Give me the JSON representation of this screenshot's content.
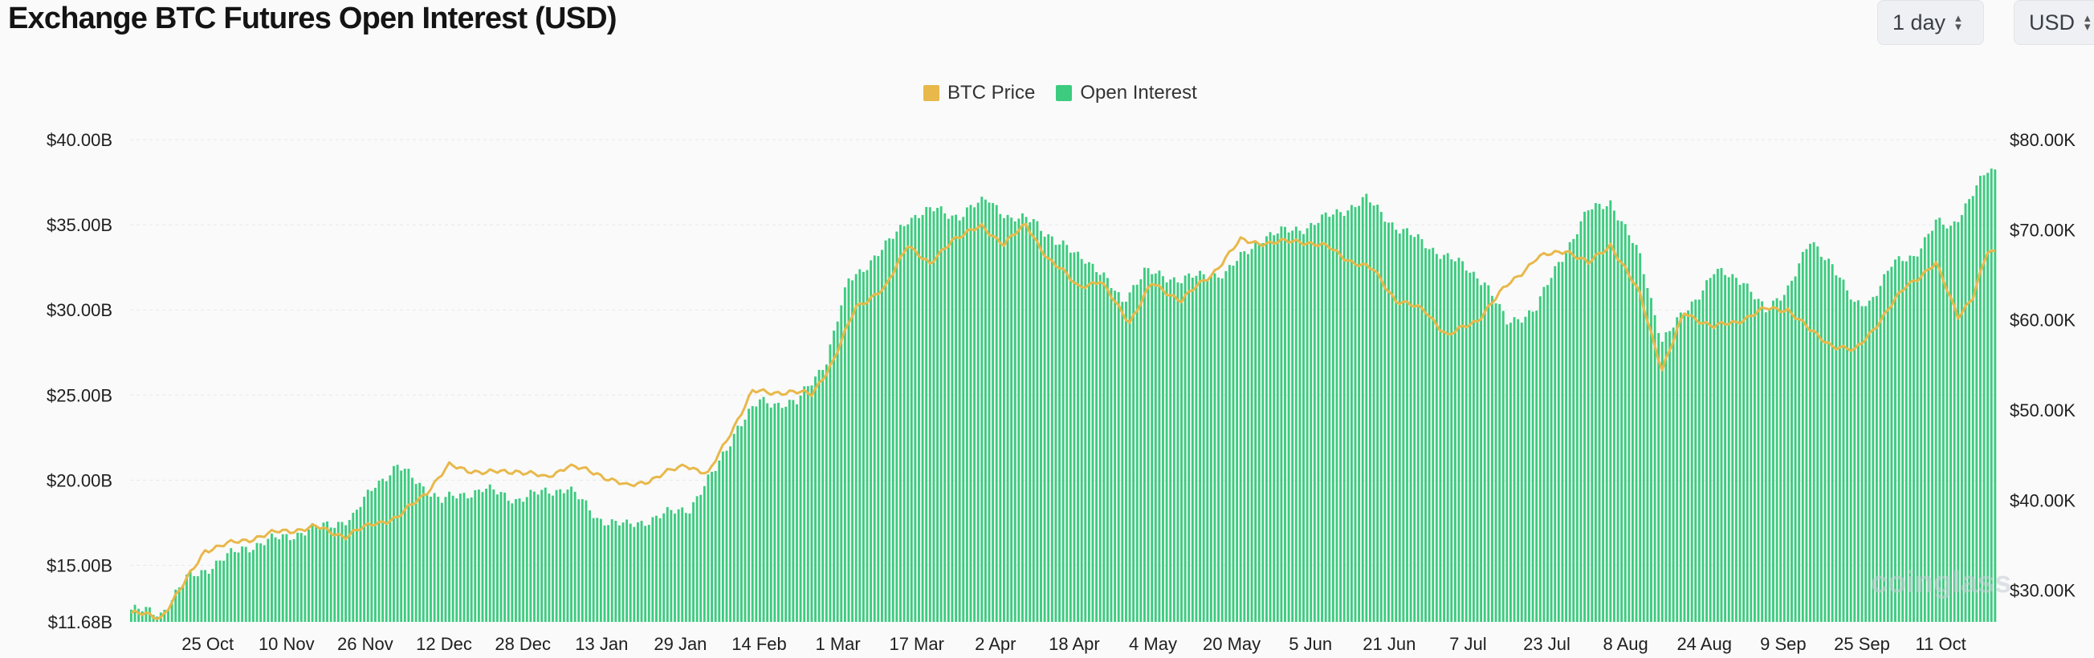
{
  "header": {
    "title": "Exchange BTC Futures Open Interest (USD)"
  },
  "controls": {
    "interval": {
      "value": "1 day"
    },
    "currency": {
      "value": "USD"
    }
  },
  "watermark": "coinglass",
  "colors": {
    "btc_price": "#e8b84a",
    "open_interest": "#3ccb7f",
    "grid": "#e6e8eb"
  },
  "chart_data": {
    "type": "bar",
    "title": "Exchange BTC Futures Open Interest (USD)",
    "legend": [
      "BTC Price",
      "Open Interest"
    ],
    "legend_position": "top-center",
    "grid": true,
    "x_tick_labels": [
      "25 Oct",
      "10 Nov",
      "26 Nov",
      "12 Dec",
      "28 Dec",
      "13 Jan",
      "29 Jan",
      "14 Feb",
      "1 Mar",
      "17 Mar",
      "2 Apr",
      "18 Apr",
      "4 May",
      "20 May",
      "5 Jun",
      "21 Jun",
      "7 Jul",
      "23 Jul",
      "8 Aug",
      "24 Aug",
      "9 Sep",
      "25 Sep",
      "11 Oct"
    ],
    "y_left": {
      "ticks": [
        "$11.68B",
        "$15.00B",
        "$20.00B",
        "$25.00B",
        "$30.00B",
        "$35.00B",
        "$40.00B"
      ],
      "range_b": [
        11.68,
        40
      ]
    },
    "y_right": {
      "ticks": [
        "$30.00K",
        "$40.00K",
        "$50.00K",
        "$60.00K",
        "$70.00K",
        "$80.00K"
      ],
      "range_k": [
        26.5,
        80
      ]
    },
    "series": [
      {
        "name": "Open Interest",
        "kind": "bar",
        "axis": "left",
        "unit": "billion USD",
        "keypoints": [
          [
            0,
            12.4
          ],
          [
            8,
            12.2
          ],
          [
            15,
            14.2
          ],
          [
            22,
            15.0
          ],
          [
            30,
            16.0
          ],
          [
            40,
            16.6
          ],
          [
            52,
            17.3
          ],
          [
            60,
            17.8
          ],
          [
            66,
            19.8
          ],
          [
            72,
            20.8
          ],
          [
            84,
            18.8
          ],
          [
            95,
            19.5
          ],
          [
            104,
            18.9
          ],
          [
            112,
            19.3
          ],
          [
            118,
            19.6
          ],
          [
            126,
            17.8
          ],
          [
            134,
            17.3
          ],
          [
            143,
            17.9
          ],
          [
            151,
            18.4
          ],
          [
            158,
            20.6
          ],
          [
            164,
            23.2
          ],
          [
            170,
            24.6
          ],
          [
            180,
            24.5
          ],
          [
            188,
            27.1
          ],
          [
            194,
            31.7
          ],
          [
            204,
            33.7
          ],
          [
            210,
            35.4
          ],
          [
            218,
            35.9
          ],
          [
            224,
            35.5
          ],
          [
            232,
            36.6
          ],
          [
            238,
            35.2
          ],
          [
            244,
            35.4
          ],
          [
            250,
            33.9
          ],
          [
            258,
            33.1
          ],
          [
            268,
            30.6
          ],
          [
            274,
            32.2
          ],
          [
            284,
            31.8
          ],
          [
            296,
            32.2
          ],
          [
            306,
            34.3
          ],
          [
            318,
            34.9
          ],
          [
            326,
            35.7
          ],
          [
            334,
            36.5
          ],
          [
            342,
            34.9
          ],
          [
            352,
            33.6
          ],
          [
            360,
            32.6
          ],
          [
            366,
            31.7
          ],
          [
            372,
            29.2
          ],
          [
            380,
            30.1
          ],
          [
            386,
            32.8
          ],
          [
            394,
            35.8
          ],
          [
            400,
            36.4
          ],
          [
            408,
            33.1
          ],
          [
            414,
            28.2
          ],
          [
            420,
            29.8
          ],
          [
            428,
            32.2
          ],
          [
            436,
            31.8
          ],
          [
            442,
            29.8
          ],
          [
            448,
            31.4
          ],
          [
            454,
            33.9
          ],
          [
            460,
            32.8
          ],
          [
            466,
            30.2
          ],
          [
            470,
            30.5
          ],
          [
            476,
            32.6
          ],
          [
            482,
            33.2
          ],
          [
            488,
            35.1
          ],
          [
            492,
            34.8
          ],
          [
            498,
            36.9
          ],
          [
            502,
            38.1
          ]
        ]
      },
      {
        "name": "BTC Price",
        "kind": "line",
        "axis": "right",
        "unit": "thousand USD",
        "keypoints": [
          [
            0,
            27.5
          ],
          [
            8,
            27.0
          ],
          [
            14,
            30.5
          ],
          [
            20,
            34.5
          ],
          [
            30,
            35.5
          ],
          [
            40,
            36.5
          ],
          [
            50,
            37.0
          ],
          [
            58,
            36.0
          ],
          [
            66,
            37.5
          ],
          [
            72,
            38.0
          ],
          [
            80,
            41.0
          ],
          [
            86,
            43.8
          ],
          [
            96,
            43.0
          ],
          [
            104,
            43.3
          ],
          [
            112,
            42.5
          ],
          [
            118,
            43.8
          ],
          [
            126,
            43.0
          ],
          [
            134,
            41.5
          ],
          [
            142,
            42.5
          ],
          [
            150,
            44.0
          ],
          [
            156,
            42.8
          ],
          [
            162,
            47.5
          ],
          [
            168,
            52.0
          ],
          [
            176,
            52.0
          ],
          [
            184,
            51.8
          ],
          [
            190,
            55.5
          ],
          [
            196,
            61.5
          ],
          [
            204,
            63.5
          ],
          [
            210,
            68.5
          ],
          [
            216,
            66.0
          ],
          [
            222,
            69.0
          ],
          [
            230,
            70.3
          ],
          [
            236,
            68.5
          ],
          [
            242,
            70.5
          ],
          [
            248,
            66.8
          ],
          [
            256,
            63.8
          ],
          [
            262,
            64.2
          ],
          [
            270,
            59.8
          ],
          [
            276,
            64.0
          ],
          [
            284,
            62.2
          ],
          [
            292,
            65.0
          ],
          [
            300,
            68.8
          ],
          [
            308,
            68.5
          ],
          [
            316,
            68.8
          ],
          [
            324,
            68.0
          ],
          [
            330,
            66.5
          ],
          [
            336,
            65.5
          ],
          [
            342,
            62.2
          ],
          [
            350,
            61.0
          ],
          [
            356,
            58.2
          ],
          [
            364,
            60.0
          ],
          [
            372,
            63.8
          ],
          [
            380,
            66.8
          ],
          [
            388,
            67.8
          ],
          [
            394,
            66.2
          ],
          [
            400,
            68.4
          ],
          [
            408,
            62.8
          ],
          [
            414,
            54.5
          ],
          [
            420,
            60.8
          ],
          [
            428,
            59.2
          ],
          [
            434,
            59.8
          ],
          [
            442,
            61.2
          ],
          [
            448,
            61.2
          ],
          [
            454,
            58.8
          ],
          [
            460,
            57.2
          ],
          [
            466,
            56.5
          ],
          [
            474,
            60.5
          ],
          [
            480,
            63.8
          ],
          [
            488,
            66.2
          ],
          [
            494,
            60.5
          ],
          [
            498,
            62.5
          ],
          [
            502,
            67.5
          ]
        ]
      }
    ]
  }
}
